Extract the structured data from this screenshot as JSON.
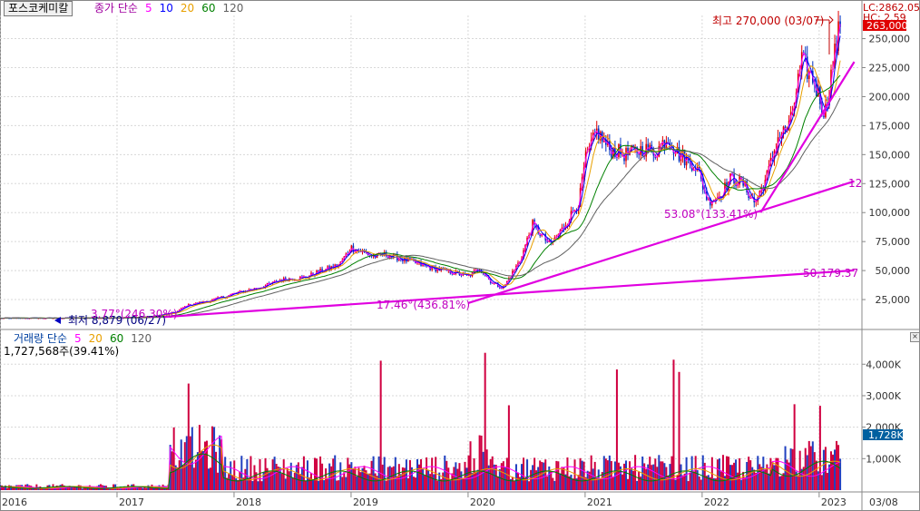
{
  "header": {
    "stock_name": "포스코케미칼",
    "price_legend": {
      "label": "종가 단순",
      "periods": [
        "5",
        "10",
        "20",
        "60",
        "120"
      ],
      "colors": [
        "#ff00ff",
        "#0000ff",
        "#e8a000",
        "#008000",
        "#606060"
      ]
    }
  },
  "top_right": {
    "lc": "LC:2862.05",
    "hc": "HC: 2.59",
    "current_price": "263,000",
    "current_color": "#e00000"
  },
  "annotations": {
    "high": "최고 270,000 (03/07)",
    "low": "최저 8,879 (06/27)",
    "label_12": "12",
    "label_50179": "50,179.37",
    "label_5308": "53.08°(133.41%)",
    "label_1746": "17.46°(436.81%)",
    "label_377": "3.77°(246.30%)"
  },
  "volume_panel": {
    "label": "거래량 단순",
    "periods": [
      "5",
      "20",
      "60",
      "120"
    ],
    "colors": [
      "#ff00ff",
      "#e8a000",
      "#008000",
      "#606060"
    ],
    "current_volume": "1,727,568주(39.41%)",
    "current_badge": "1,728K"
  },
  "x_axis": {
    "labels": [
      "2016",
      "2017",
      "2018",
      "2019",
      "2020",
      "2021",
      "2022",
      "2023"
    ],
    "right_label": "03/08"
  },
  "chart_data": {
    "type": "line",
    "price_axis": {
      "ticks": [
        "25,000",
        "50,000",
        "75,000",
        "100,000",
        "125,000",
        "150,000",
        "175,000",
        "200,000",
        "225,000",
        "250,000"
      ]
    },
    "volume_axis": {
      "ticks": [
        "1,000K",
        "2,000K",
        "3,000K",
        "4,000K"
      ]
    },
    "series": [
      {
        "name": "종가",
        "x": [
          2016.0,
          2016.5,
          2016.9,
          2017.1,
          2017.3,
          2017.5,
          2017.6,
          2017.8,
          2017.9,
          2018.0,
          2018.2,
          2018.3,
          2018.4,
          2018.6,
          2018.7,
          2018.9,
          2019.0,
          2019.2,
          2019.3,
          2019.5,
          2019.7,
          2019.9,
          2020.0,
          2020.1,
          2020.2,
          2020.3,
          2020.45,
          2020.55,
          2020.7,
          2020.8,
          2020.95,
          2021.0,
          2021.1,
          2021.2,
          2021.35,
          2021.5,
          2021.6,
          2021.7,
          2021.8,
          2021.95,
          2022.05,
          2022.15,
          2022.25,
          2022.35,
          2022.45,
          2022.55,
          2022.65,
          2022.75,
          2022.85,
          2022.95,
          2023.05,
          2023.12,
          2023.18
        ],
        "y": [
          8900,
          9000,
          9200,
          9500,
          10500,
          14000,
          20000,
          24000,
          27000,
          30000,
          35000,
          38000,
          42000,
          44000,
          48000,
          55000,
          70000,
          62000,
          64000,
          58000,
          52000,
          48000,
          45000,
          52000,
          40000,
          35000,
          60000,
          90000,
          72000,
          85000,
          110000,
          145000,
          170000,
          155000,
          150000,
          155000,
          152000,
          165000,
          150000,
          140000,
          110000,
          115000,
          130000,
          125000,
          108000,
          130000,
          165000,
          175000,
          230000,
          215000,
          185000,
          230000,
          263000
        ]
      }
    ],
    "ma_periods": [
      5,
      10,
      20,
      60,
      120
    ],
    "trendlines": [
      {
        "from": [
          "2017.4",
          10000
        ],
        "to": [
          "2023.3",
          50179.37
        ],
        "label": "50,179.37"
      },
      {
        "from": [
          "2020.0",
          22000
        ],
        "to": [
          "2023.3",
          127000
        ],
        "label": "12"
      },
      {
        "from": [
          "2022.5",
          100000
        ],
        "to": [
          "2023.3",
          230000
        ]
      }
    ],
    "high": {
      "value": 270000,
      "date": "03/07"
    },
    "low": {
      "value": 8879,
      "date": "06/27"
    }
  }
}
